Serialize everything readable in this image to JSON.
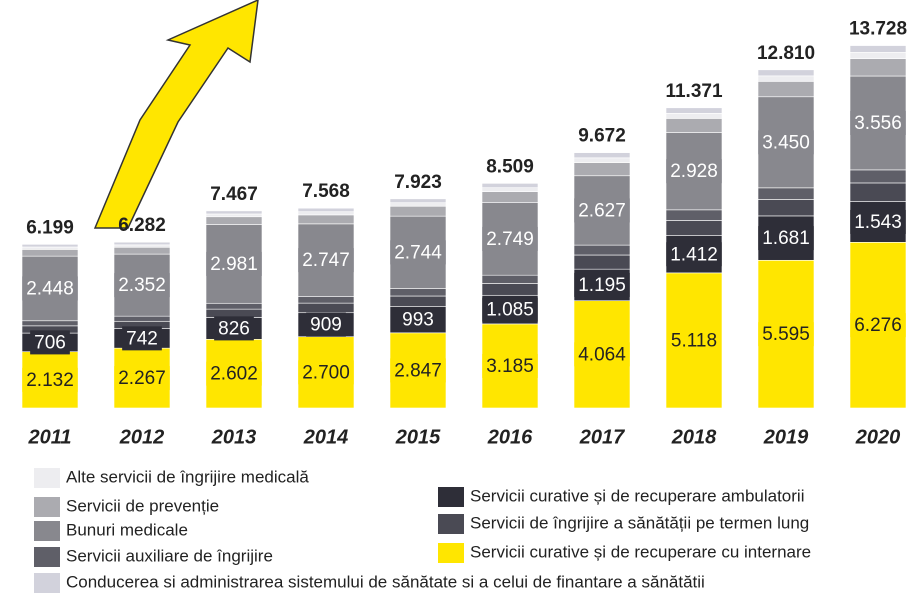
{
  "chart_data": {
    "type": "stacked-bar",
    "categories": [
      "2011",
      "2012",
      "2013",
      "2014",
      "2015",
      "2016",
      "2017",
      "2018",
      "2019",
      "2020"
    ],
    "series": [
      {
        "name": "Servicii curative și de recuperare cu internare",
        "color": "#ffe600",
        "values": [
          2132,
          2267,
          2602,
          2700,
          2847,
          3185,
          4064,
          5118,
          5595,
          6276
        ],
        "value_labels": [
          "2.132",
          "2.267",
          "2.602",
          "2.700",
          "2.847",
          "3.185",
          "4.064",
          "5.118",
          "5.595",
          "6.276"
        ]
      },
      {
        "name": "Servicii curative și de recuperare ambulatorii",
        "color": "#2e2e38",
        "values": [
          706,
          742,
          826,
          909,
          993,
          1085,
          1195,
          1412,
          1681,
          1543
        ],
        "value_labels": [
          "706",
          "742",
          "826",
          "909",
          "993",
          "1.085",
          "1.195",
          "1.412",
          "1.681",
          "1.543"
        ]
      },
      {
        "name": "Servicii de îngrijire a sănătății pe termen lung",
        "color": "#4a4a54",
        "values": [
          274,
          276,
          317,
          364,
          402,
          447,
          536,
          574,
          625,
          706
        ]
      },
      {
        "name": "Servicii auxiliare de îngrijire",
        "color": "#5f5f68",
        "values": [
          192,
          193,
          222,
          255,
          281,
          313,
          375,
          402,
          438,
          494
        ]
      },
      {
        "name": "Bunuri medicale",
        "color": "#88888e",
        "values": [
          2448,
          2352,
          2981,
          2747,
          2744,
          2749,
          2627,
          2928,
          3450,
          3556
        ],
        "value_labels": [
          "2.448",
          "2.352",
          "2.981",
          "2.747",
          "2.744",
          "2.749",
          "2.627",
          "2.928",
          "3.450",
          "3.556"
        ]
      },
      {
        "name": "Servicii de prevenție",
        "color": "#ababb0",
        "values": [
          256,
          258,
          296,
          339,
          375,
          417,
          500,
          536,
          584,
          659
        ]
      },
      {
        "name": "Alte servicii de îngrijire medicală",
        "color": "#ededf0",
        "values": [
          91,
          92,
          106,
          121,
          134,
          149,
          179,
          191,
          208,
          235
        ]
      },
      {
        "name": "Conducerea si administrarea sistemului de sănătate si a celui de finantare a sănătătii",
        "color": "#d2d2dc",
        "values": [
          100,
          102,
          117,
          133,
          147,
          164,
          196,
          210,
          229,
          259
        ]
      }
    ],
    "totals": {
      "values": [
        6199,
        6282,
        7467,
        7568,
        7923,
        8509,
        9672,
        11371,
        12810,
        13728
      ],
      "value_labels": [
        "6.199",
        "6.282",
        "7.467",
        "7.568",
        "7.923",
        "8.509",
        "9.672",
        "11.371",
        "12.810",
        "13.728"
      ]
    }
  }
}
